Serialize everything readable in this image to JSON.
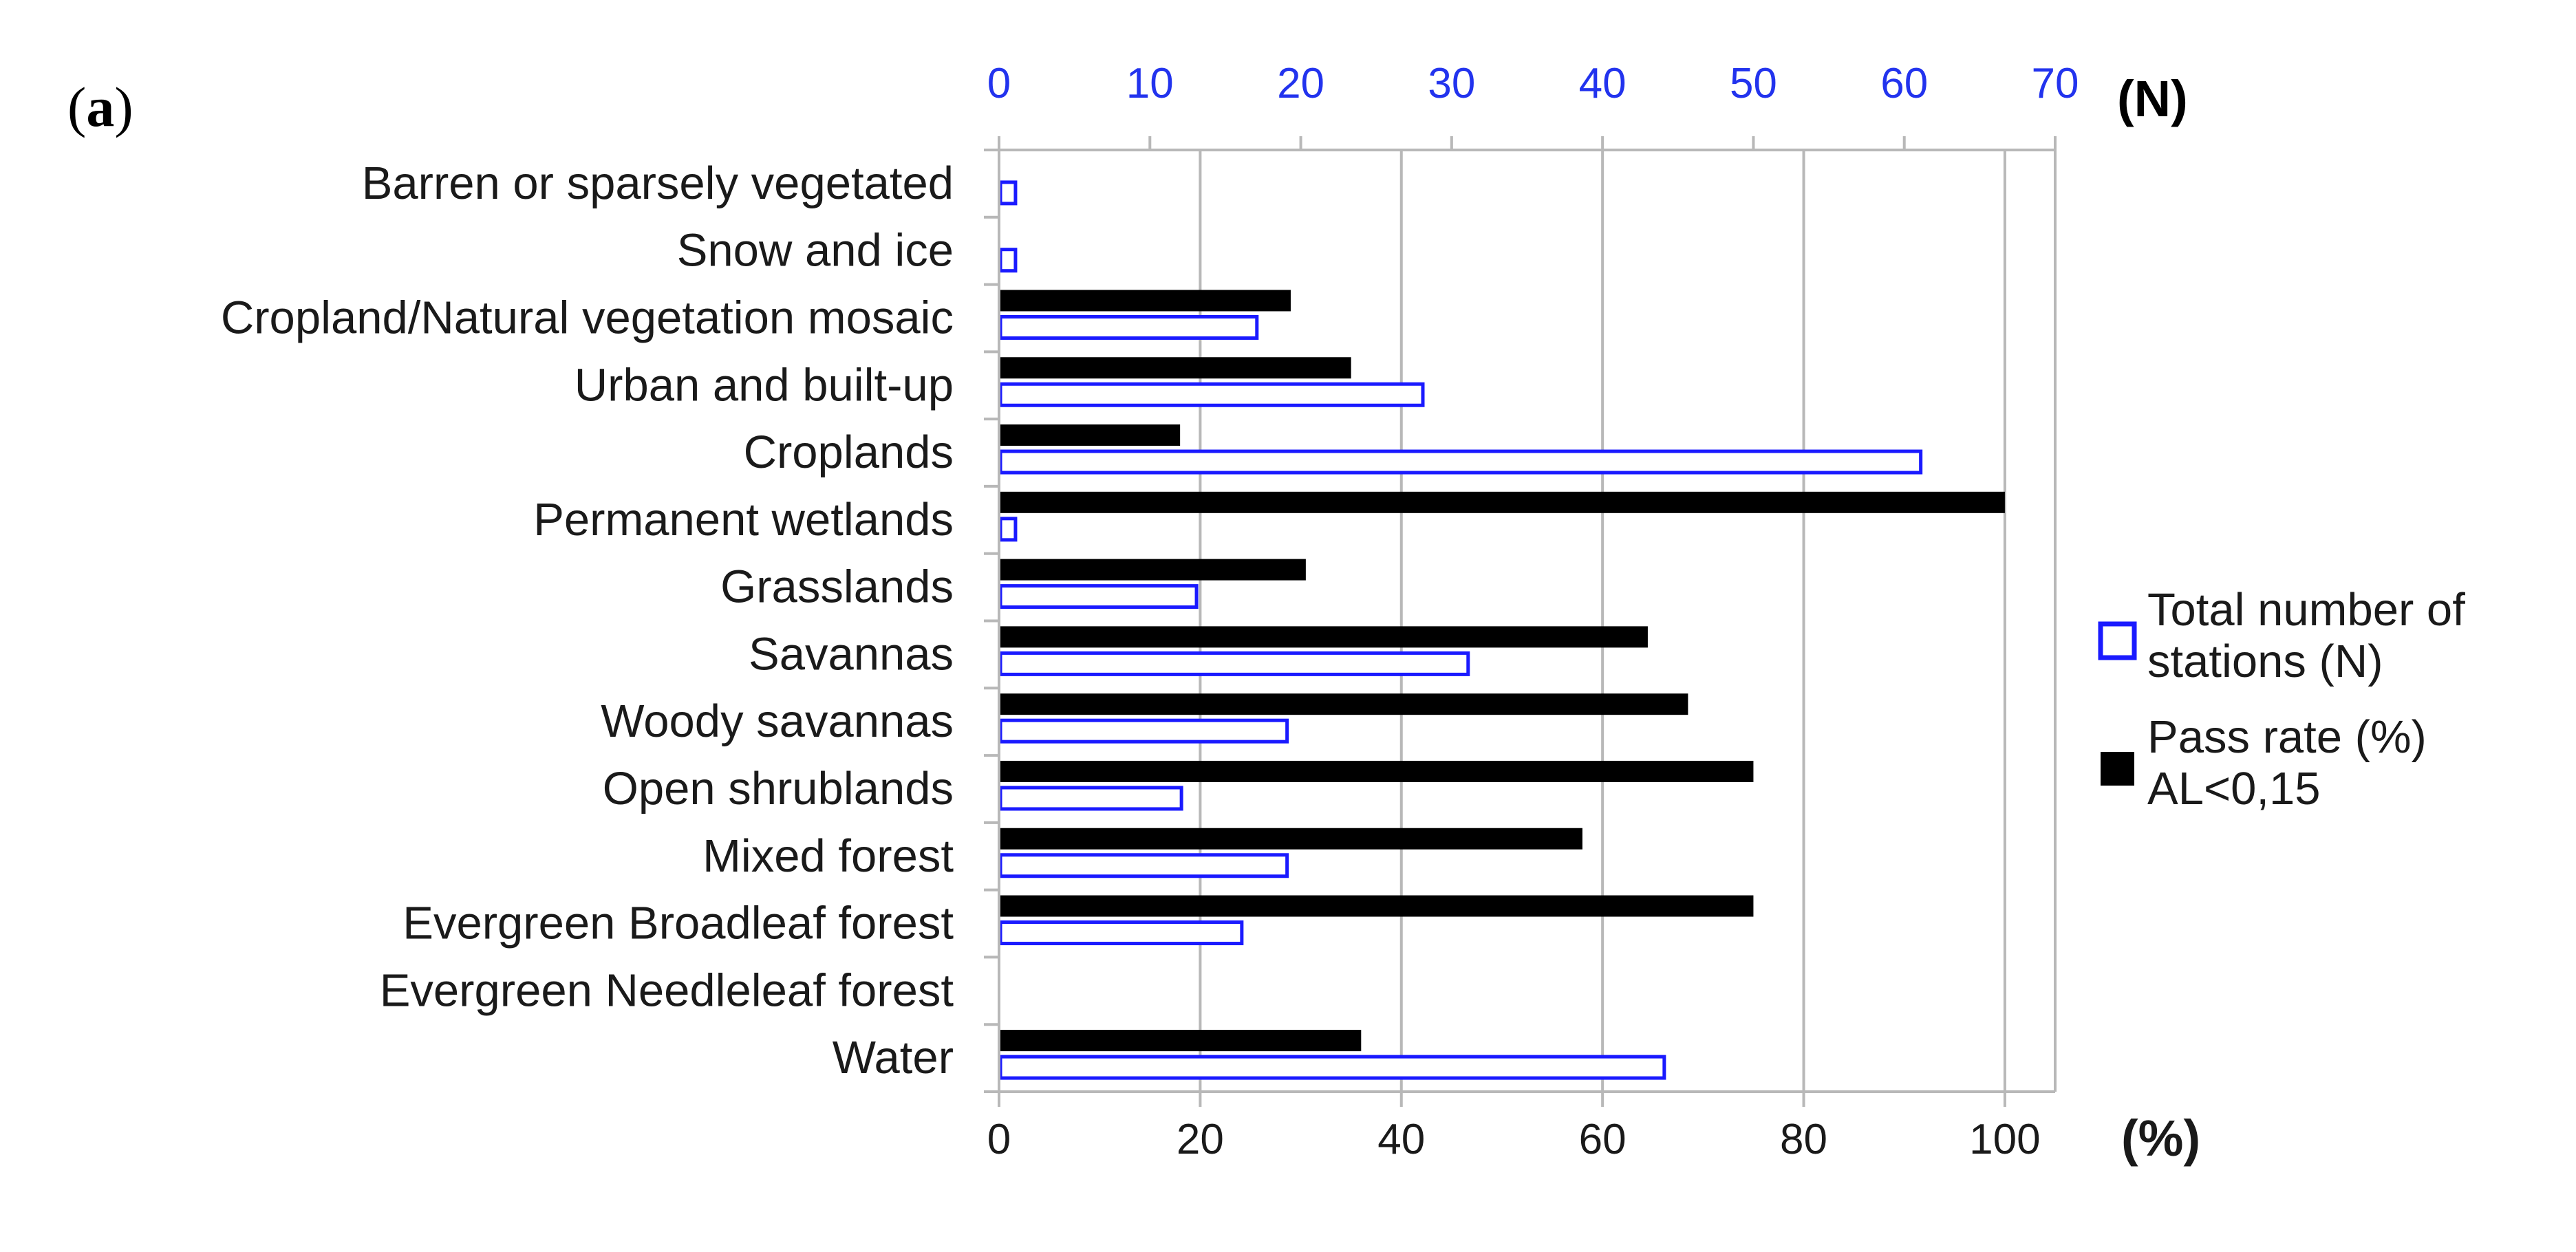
{
  "panel_label": {
    "open": "(",
    "letter": "a",
    "close": ")"
  },
  "colors": {
    "pass_bar": "#000000",
    "stations_bar": "#1a1aff",
    "grid": "#b8b8b8",
    "top_axis": "#2233ee",
    "bar_fill_white": "#ffffff"
  },
  "chart_data": {
    "type": "bar",
    "orientation": "horizontal",
    "categories": [
      "Barren or sparsely vegetated",
      "Snow and ice",
      "Cropland/Natural vegetation mosaic",
      "Urban and built-up",
      "Croplands",
      "Permanent wetlands",
      "Grasslands",
      "Savannas",
      "Woody savannas",
      "Open shrublands",
      "Mixed forest",
      "Evergreen Broadleaf forest",
      "Evergreen Needleleaf forest",
      "Water"
    ],
    "series": [
      {
        "name": "Pass rate (%) AL<0,15",
        "axis": "bottom",
        "values": [
          0,
          0,
          29,
          35,
          18,
          100,
          30.5,
          64.5,
          68.5,
          75,
          58,
          75,
          0,
          36
        ]
      },
      {
        "name": "Total number of stations (N)",
        "axis": "top",
        "values": [
          1,
          1,
          17,
          28,
          61,
          1,
          13,
          31,
          19,
          12,
          19,
          16,
          0,
          44
        ]
      }
    ],
    "bottom_axis": {
      "ticks": [
        "0",
        "20",
        "40",
        "60",
        "80",
        "100"
      ],
      "range": [
        0,
        105
      ],
      "label": "(%)"
    },
    "top_axis": {
      "ticks": [
        "0",
        "10",
        "20",
        "30",
        "40",
        "50",
        "60",
        "70"
      ],
      "range": [
        0,
        70
      ],
      "label": "(N)"
    },
    "grid": true,
    "legend": {
      "placement": "right",
      "items": [
        {
          "series": "Total number of stations (N)",
          "lines": [
            "Total number of",
            "stations (N)"
          ]
        },
        {
          "series": "Pass rate (%) AL<0,15",
          "lines": [
            "Pass rate (%)",
            "AL<0,15"
          ]
        }
      ]
    }
  }
}
